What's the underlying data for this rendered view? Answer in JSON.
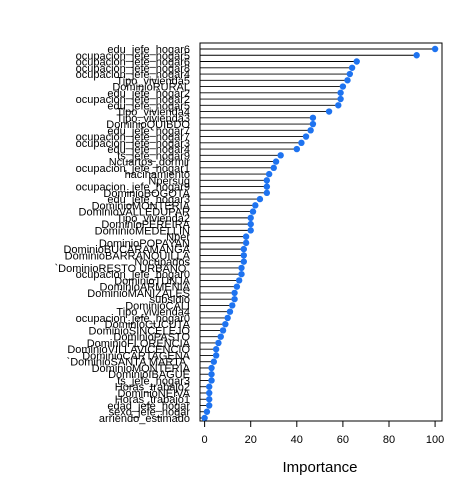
{
  "chart_data": {
    "type": "dot",
    "xlabel": "Importance",
    "xlim": [
      -2,
      103
    ],
    "xticks": [
      0,
      20,
      40,
      60,
      80,
      100
    ],
    "point_color": "#1E73F0",
    "categories": [
      "edu_jefe_hogar6",
      "ocupacion_jefe_hogar5",
      "ocupacion_jefe_hogar6",
      "ocupacion_jefe_hogar8",
      "ocupacion_jefe_hogar4",
      "Tipo_vivienda5",
      "DominioRURAL",
      "edu_jefe_hogar2",
      "ocupacion_jefe_hogar2",
      "edu_jefe_hogar5",
      "Tipo_vivienda4",
      "Tipo_vivienda3",
      "DominioQUIBDO",
      "edu_jefe_hogar7",
      "ocupacion_jefe_hogar7",
      "ocupacion_jefe_hogar3",
      "edu_jefe_hogar4",
      "ts_jefe_hogar9",
      "Ncuartos_dormir",
      "ocupacion_jefe_hogar1",
      "hacinamiento",
      "Npersug",
      "ocupacion_jefe_hogar9",
      "DominioBOGOTA",
      "edu_jefe_hogar3",
      "DominioMONTERIA",
      "DominioVALLEDUPAR",
      "Tipo_vivienda2",
      "DominioPEREIRA",
      "DominioMEDELLIN",
      "Nper",
      "DominioPOPAYAN",
      "DominioBUCARAMANGA",
      "DominioBARRANQUILLA",
      "Nocupados",
      "`DominioRESTO URBANO`",
      "ocupacion_jefe_hogar0",
      "DominioTUNJA",
      "DominioARMENIA",
      "DominioMANIZALES",
      "subsidio",
      "DominioCALI",
      "Tipo_vivienda4",
      "ocupacion_jefe_hogar0",
      "DominioCUCUTA",
      "DominioSINCELEJO",
      "DominioPASTO",
      "DominioFLORENCIA",
      "DominioVILLAVICENCIO",
      "DominioCARTAGENA",
      "`DominioSANTA MARTA`",
      "DominioMONTERIA",
      "DominioIBAGUE",
      "ts_jefe_hogar3",
      "Horas_trabajo2",
      "DominioNEIVA",
      "Horas_trabajo1",
      "edad_jefe_hogar",
      "sexo_jefe_hogar",
      "arriendo_estimado"
    ],
    "values": [
      100,
      92,
      66,
      64,
      63,
      62,
      60,
      59,
      59,
      58,
      54,
      47,
      47,
      46,
      44,
      42,
      40,
      33,
      31,
      30,
      28,
      27,
      27,
      27,
      24,
      22,
      21,
      20,
      20,
      20,
      18,
      18,
      17,
      17,
      17,
      16,
      16,
      15,
      14,
      13,
      13,
      12,
      11,
      10,
      9,
      8,
      7,
      6,
      5,
      5,
      4,
      3,
      3,
      3,
      2,
      2,
      2,
      2,
      1,
      0
    ]
  }
}
